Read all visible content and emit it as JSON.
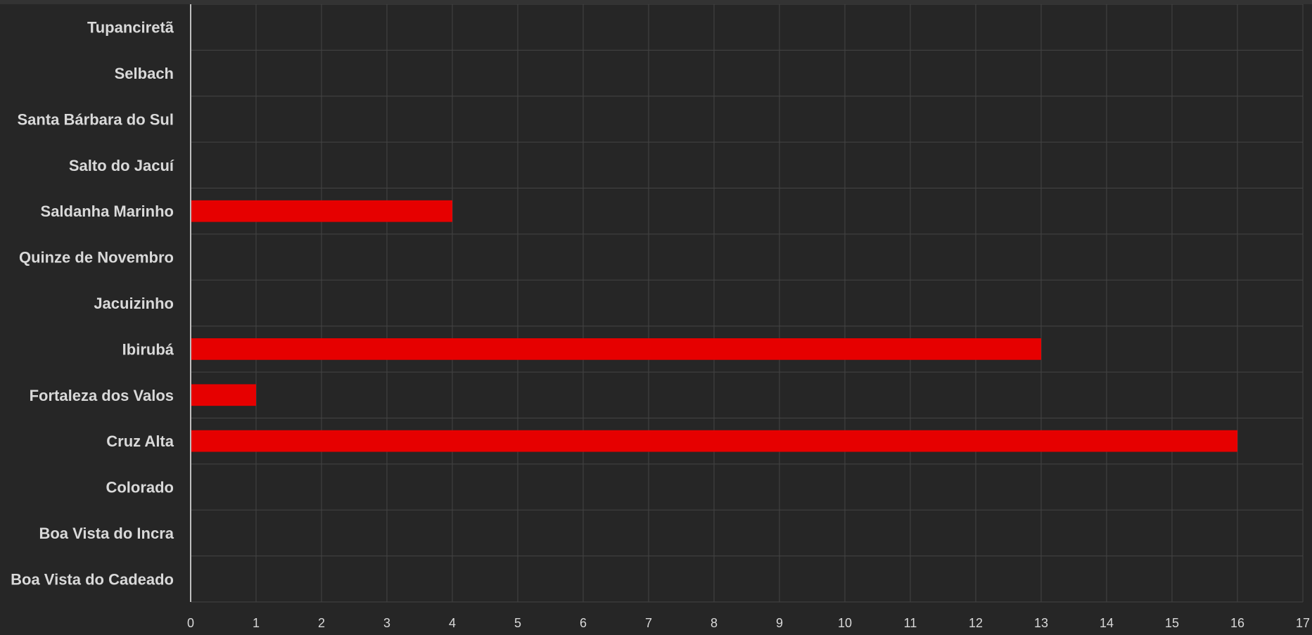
{
  "chart_data": {
    "type": "bar",
    "orientation": "horizontal",
    "categories": [
      "Tupanciretã",
      "Selbach",
      "Santa Bárbara do Sul",
      "Salto do Jacuí",
      "Saldanha Marinho",
      "Quinze de Novembro",
      "Jacuizinho",
      "Ibirubá",
      "Fortaleza dos Valos",
      "Cruz Alta",
      "Colorado",
      "Boa Vista do Incra",
      "Boa Vista do Cadeado"
    ],
    "values": [
      0,
      0,
      0,
      0,
      4,
      0,
      0,
      13,
      1,
      16,
      0,
      0,
      0
    ],
    "xlim": [
      0,
      17
    ],
    "xticks": [
      "0",
      "1",
      "2",
      "3",
      "4",
      "5",
      "6",
      "7",
      "8",
      "9",
      "10",
      "11",
      "12",
      "13",
      "14",
      "15",
      "16",
      "17"
    ],
    "grid": true,
    "legend": "none",
    "colors": {
      "bar": "#e60000",
      "background": "#262626",
      "grid": "#444444",
      "axis": "#bfbfbf",
      "text": "#d9d9d9"
    }
  }
}
